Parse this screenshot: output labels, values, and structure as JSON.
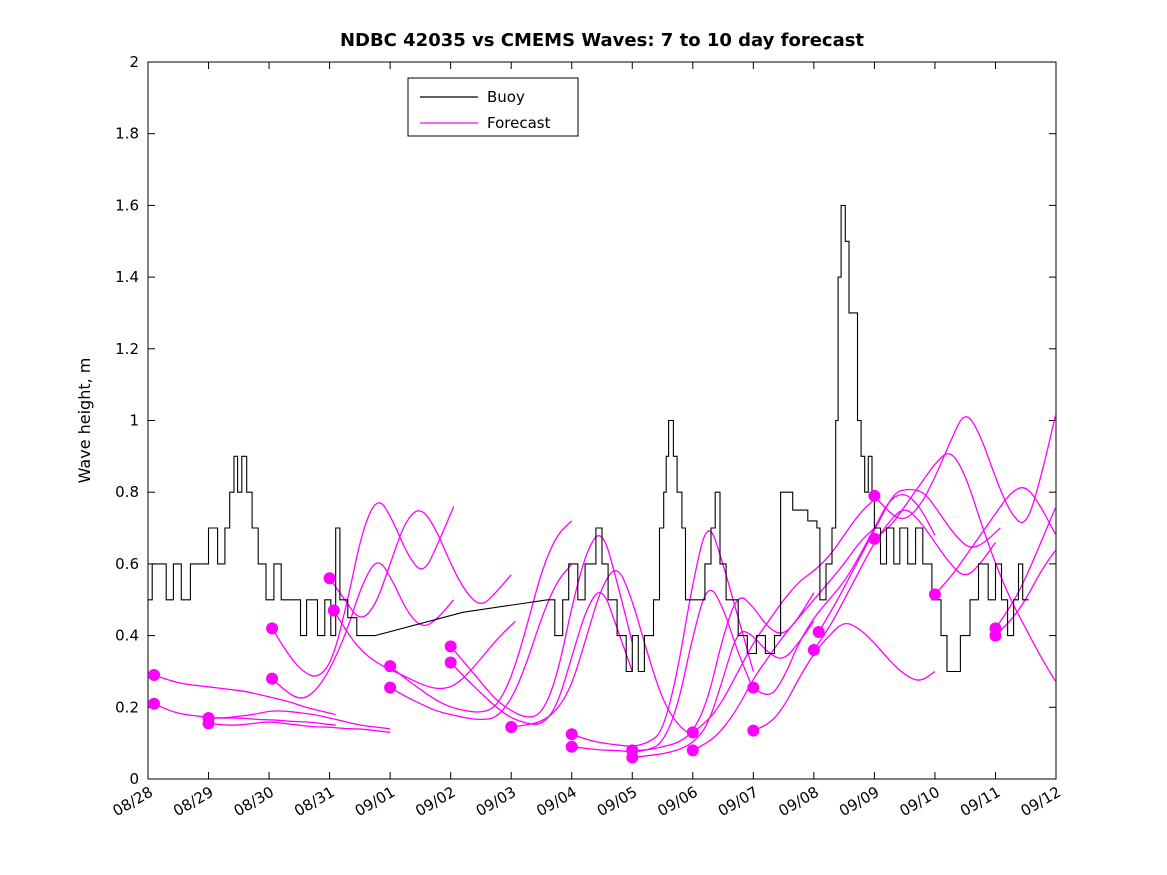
{
  "figure": {
    "title": "NDBC 42035 vs CMEMS Waves: 7 to 10 day forecast",
    "ylabel": "Wave height, m"
  },
  "chart_data": {
    "type": "line",
    "title": "NDBC 42035 vs CMEMS Waves: 7 to 10 day forecast",
    "xlabel": "",
    "ylabel": "Wave height, m",
    "ylim": [
      0,
      2
    ],
    "xlim_days": [
      0,
      15
    ],
    "grid": false,
    "legend_position": "north",
    "x_tick_labels": [
      "08/28",
      "08/29",
      "08/30",
      "08/31",
      "09/01",
      "09/02",
      "09/03",
      "09/04",
      "09/05",
      "09/06",
      "09/07",
      "09/08",
      "09/09",
      "09/10",
      "09/11",
      "09/12"
    ],
    "y_tick_values": [
      0,
      0.2,
      0.4,
      0.6,
      0.8,
      1,
      1.2,
      1.4,
      1.6,
      1.8,
      2
    ],
    "y_tick_labels": [
      "0",
      "0.2",
      "0.4",
      "0.6",
      "0.8",
      "1",
      "1.2",
      "1.4",
      "1.6",
      "1.8",
      "2"
    ],
    "legend": [
      {
        "label": "Buoy",
        "color": "#000000"
      },
      {
        "label": "Forecast",
        "color": "#FF00FF"
      }
    ],
    "colors": {
      "buoy": "#000000",
      "forecast": "#FF00FF",
      "axis": "#000000",
      "background": "#FFFFFF"
    },
    "marker": {
      "shape": "circle",
      "radius": 6,
      "color": "#FF00FF"
    },
    "buoy_series": {
      "name": "Buoy",
      "segments": [
        {
          "type": "steps",
          "points": [
            [
              0,
              0.5
            ],
            [
              0.07,
              0.6
            ],
            [
              0.3,
              0.5
            ],
            [
              0.42,
              0.6
            ],
            [
              0.55,
              0.5
            ],
            [
              0.7,
              0.6
            ],
            [
              1.0,
              0.7
            ],
            [
              1.15,
              0.6
            ],
            [
              1.27,
              0.7
            ],
            [
              1.35,
              0.8
            ],
            [
              1.42,
              0.9
            ],
            [
              1.48,
              0.8
            ],
            [
              1.55,
              0.9
            ],
            [
              1.63,
              0.8
            ],
            [
              1.72,
              0.7
            ],
            [
              1.82,
              0.6
            ],
            [
              1.95,
              0.5
            ],
            [
              2.08,
              0.6
            ],
            [
              2.2,
              0.5
            ],
            [
              2.52,
              0.4
            ],
            [
              2.62,
              0.5
            ],
            [
              2.8,
              0.4
            ],
            [
              2.92,
              0.5
            ],
            [
              3.02,
              0.4
            ],
            [
              3.1,
              0.7
            ],
            [
              3.17,
              0.5
            ],
            [
              3.3,
              0.45
            ],
            [
              3.45,
              0.4
            ],
            [
              3.75,
              0.4
            ]
          ]
        },
        {
          "type": "line",
          "points": [
            [
              3.75,
              0.4
            ],
            [
              5.2,
              0.465
            ],
            [
              6.6,
              0.5
            ]
          ]
        },
        {
          "type": "steps",
          "points": [
            [
              6.6,
              0.5
            ],
            [
              6.72,
              0.4
            ],
            [
              6.85,
              0.5
            ],
            [
              6.95,
              0.6
            ],
            [
              7.1,
              0.5
            ],
            [
              7.22,
              0.6
            ],
            [
              7.4,
              0.7
            ],
            [
              7.5,
              0.6
            ],
            [
              7.6,
              0.5
            ],
            [
              7.75,
              0.4
            ],
            [
              7.9,
              0.3
            ],
            [
              8.0,
              0.4
            ],
            [
              8.1,
              0.3
            ],
            [
              8.2,
              0.4
            ],
            [
              8.35,
              0.5
            ],
            [
              8.45,
              0.7
            ],
            [
              8.52,
              0.8
            ],
            [
              8.56,
              0.9
            ],
            [
              8.6,
              1.0
            ],
            [
              8.68,
              0.9
            ],
            [
              8.74,
              0.8
            ],
            [
              8.82,
              0.7
            ],
            [
              8.88,
              0.5
            ],
            [
              9.2,
              0.6
            ],
            [
              9.3,
              0.7
            ],
            [
              9.37,
              0.8
            ],
            [
              9.45,
              0.6
            ],
            [
              9.55,
              0.5
            ],
            [
              9.75,
              0.4
            ],
            [
              9.9,
              0.35
            ],
            [
              10.05,
              0.4
            ],
            [
              10.2,
              0.35
            ],
            [
              10.35,
              0.4
            ],
            [
              10.45,
              0.8
            ],
            [
              10.65,
              0.75
            ],
            [
              10.9,
              0.72
            ],
            [
              11.05,
              0.7
            ],
            [
              11.1,
              0.5
            ],
            [
              11.2,
              0.6
            ],
            [
              11.3,
              0.7
            ],
            [
              11.36,
              1.0
            ],
            [
              11.4,
              1.4
            ],
            [
              11.45,
              1.6
            ],
            [
              11.52,
              1.5
            ],
            [
              11.58,
              1.3
            ],
            [
              11.72,
              1.0
            ],
            [
              11.78,
              0.9
            ],
            [
              11.84,
              0.8
            ],
            [
              11.9,
              0.9
            ],
            [
              11.96,
              0.8
            ],
            [
              12.0,
              0.7
            ],
            [
              12.1,
              0.6
            ],
            [
              12.2,
              0.7
            ],
            [
              12.32,
              0.6
            ],
            [
              12.42,
              0.7
            ],
            [
              12.55,
              0.6
            ],
            [
              12.68,
              0.7
            ],
            [
              12.8,
              0.6
            ],
            [
              12.95,
              0.5
            ],
            [
              13.1,
              0.4
            ],
            [
              13.2,
              0.3
            ],
            [
              13.42,
              0.4
            ],
            [
              13.58,
              0.5
            ],
            [
              13.72,
              0.6
            ],
            [
              13.88,
              0.5
            ],
            [
              14.0,
              0.6
            ],
            [
              14.1,
              0.5
            ],
            [
              14.2,
              0.4
            ],
            [
              14.3,
              0.5
            ],
            [
              14.38,
              0.6
            ],
            [
              14.45,
              0.5
            ],
            [
              14.55,
              0.5
            ]
          ]
        }
      ]
    },
    "forecast_runs": [
      {
        "start_day": 0.1,
        "dt_days": 0.25,
        "values": [
          0.29,
          0.275,
          0.265,
          0.26,
          0.255,
          0.25,
          0.245,
          0.235,
          0.225,
          0.215,
          0.2,
          0.19,
          0.18
        ]
      },
      {
        "start_day": 0.1,
        "dt_days": 0.25,
        "values": [
          0.21,
          0.19,
          0.18,
          0.175,
          0.17,
          0.17,
          0.17,
          0.165,
          0.165,
          0.16,
          0.16,
          0.155,
          0.15
        ]
      },
      {
        "start_day": 1.0,
        "dt_days": 0.25,
        "values": [
          0.17,
          0.17,
          0.175,
          0.18,
          0.19,
          0.19,
          0.185,
          0.18,
          0.17,
          0.16,
          0.15,
          0.145,
          0.14
        ]
      },
      {
        "start_day": 1.0,
        "dt_days": 0.25,
        "values": [
          0.155,
          0.15,
          0.15,
          0.155,
          0.16,
          0.155,
          0.15,
          0.145,
          0.145,
          0.14,
          0.14,
          0.135,
          0.13
        ]
      },
      {
        "start_day": 2.05,
        "dt_days": 0.25,
        "values": [
          0.42,
          0.35,
          0.3,
          0.28,
          0.33,
          0.5,
          0.7,
          0.79,
          0.72,
          0.62,
          0.57,
          0.66,
          0.76
        ]
      },
      {
        "start_day": 2.05,
        "dt_days": 0.25,
        "values": [
          0.28,
          0.24,
          0.22,
          0.25,
          0.32,
          0.42,
          0.55,
          0.62,
          0.55,
          0.46,
          0.42,
          0.45,
          0.5
        ]
      },
      {
        "start_day": 3.0,
        "dt_days": 0.25,
        "values": [
          0.56,
          0.5,
          0.44,
          0.48,
          0.6,
          0.72,
          0.76,
          0.7,
          0.6,
          0.52,
          0.48,
          0.52,
          0.57
        ]
      },
      {
        "start_day": 3.07,
        "dt_days": 0.25,
        "values": [
          0.47,
          0.4,
          0.35,
          0.32,
          0.3,
          0.28,
          0.26,
          0.25,
          0.26,
          0.3,
          0.35,
          0.4,
          0.44
        ]
      },
      {
        "start_day": 4.0,
        "dt_days": 0.25,
        "values": [
          0.315,
          0.28,
          0.25,
          0.22,
          0.2,
          0.19,
          0.185,
          0.2,
          0.28,
          0.42,
          0.58,
          0.68,
          0.72
        ]
      },
      {
        "start_day": 4.0,
        "dt_days": 0.25,
        "values": [
          0.255,
          0.23,
          0.21,
          0.19,
          0.18,
          0.17,
          0.165,
          0.17,
          0.22,
          0.32,
          0.45,
          0.55,
          0.6
        ]
      },
      {
        "start_day": 5.0,
        "dt_days": 0.25,
        "values": [
          0.37,
          0.32,
          0.27,
          0.22,
          0.19,
          0.17,
          0.18,
          0.28,
          0.48,
          0.64,
          0.7,
          0.55,
          0.38
        ]
      },
      {
        "start_day": 5.0,
        "dt_days": 0.25,
        "values": [
          0.325,
          0.28,
          0.24,
          0.2,
          0.17,
          0.155,
          0.15,
          0.2,
          0.34,
          0.48,
          0.54,
          0.42,
          0.3
        ]
      },
      {
        "start_day": 6.0,
        "dt_days": 0.25,
        "values": [
          0.145,
          0.15,
          0.16,
          0.19,
          0.26,
          0.4,
          0.54,
          0.6,
          0.5,
          0.35,
          0.22,
          0.15,
          0.12
        ]
      },
      {
        "start_day": 7.0,
        "dt_days": 0.25,
        "values": [
          0.125,
          0.11,
          0.1,
          0.095,
          0.09,
          0.1,
          0.13,
          0.3,
          0.55,
          0.73,
          0.6,
          0.45,
          0.3
        ]
      },
      {
        "start_day": 7.0,
        "dt_days": 0.25,
        "values": [
          0.09,
          0.085,
          0.08,
          0.08,
          0.075,
          0.08,
          0.1,
          0.2,
          0.4,
          0.55,
          0.48,
          0.35,
          0.25
        ]
      },
      {
        "start_day": 8.0,
        "dt_days": 0.25,
        "values": [
          0.08,
          0.08,
          0.09,
          0.1,
          0.13,
          0.22,
          0.4,
          0.52,
          0.48,
          0.42,
          0.4,
          0.45,
          0.52
        ]
      },
      {
        "start_day": 8.0,
        "dt_days": 0.25,
        "values": [
          0.06,
          0.065,
          0.07,
          0.08,
          0.1,
          0.15,
          0.28,
          0.42,
          0.4,
          0.35,
          0.33,
          0.38,
          0.44
        ]
      },
      {
        "start_day": 9.0,
        "dt_days": 0.25,
        "values": [
          0.13,
          0.16,
          0.22,
          0.3,
          0.38,
          0.44,
          0.5,
          0.55,
          0.58,
          0.62,
          0.68,
          0.74,
          0.78
        ]
      },
      {
        "start_day": 9.0,
        "dt_days": 0.25,
        "values": [
          0.08,
          0.1,
          0.14,
          0.2,
          0.28,
          0.34,
          0.4,
          0.45,
          0.5,
          0.55,
          0.6,
          0.66,
          0.7
        ]
      },
      {
        "start_day": 10.0,
        "dt_days": 0.25,
        "values": [
          0.255,
          0.22,
          0.28,
          0.38,
          0.45,
          0.5,
          0.55,
          0.62,
          0.7,
          0.78,
          0.8,
          0.76,
          0.68
        ]
      },
      {
        "start_day": 10.0,
        "dt_days": 0.25,
        "values": [
          0.135,
          0.15,
          0.2,
          0.28,
          0.35,
          0.4,
          0.44,
          0.42,
          0.38,
          0.33,
          0.29,
          0.27,
          0.3
        ]
      },
      {
        "start_day": 11.0,
        "dt_days": 0.25,
        "values": [
          0.36,
          0.42,
          0.5,
          0.58,
          0.66,
          0.72,
          0.76,
          0.72,
          0.66,
          0.6,
          0.56,
          0.6,
          0.66
        ]
      },
      {
        "start_day": 11.08,
        "dt_days": 0.25,
        "values": [
          0.41,
          0.48,
          0.56,
          0.64,
          0.72,
          0.8,
          0.81,
          0.8,
          0.74,
          0.68,
          0.64,
          0.66,
          0.7
        ]
      },
      {
        "start_day": 12.0,
        "dt_days": 0.25,
        "values": [
          0.79,
          0.74,
          0.72,
          0.76,
          0.84,
          0.94,
          1.03,
          0.96,
          0.84,
          0.74,
          0.7,
          0.84,
          1.02
        ]
      },
      {
        "start_day": 12.0,
        "dt_days": 0.25,
        "values": [
          0.67,
          0.7,
          0.76,
          0.82,
          0.88,
          0.92,
          0.85,
          0.72,
          0.6,
          0.5,
          0.42,
          0.34,
          0.27
        ]
      },
      {
        "start_day": 13.0,
        "dt_days": 0.25,
        "values": [
          0.515,
          0.56,
          0.62,
          0.68,
          0.74,
          0.8,
          0.82,
          0.76,
          0.68
        ]
      },
      {
        "start_day": 14.0,
        "dt_days": 0.25,
        "values": [
          0.42,
          0.48,
          0.56,
          0.66,
          0.76
        ]
      },
      {
        "start_day": 14.0,
        "dt_days": 0.25,
        "values": [
          0.4,
          0.44,
          0.5,
          0.58,
          0.64
        ]
      }
    ]
  }
}
